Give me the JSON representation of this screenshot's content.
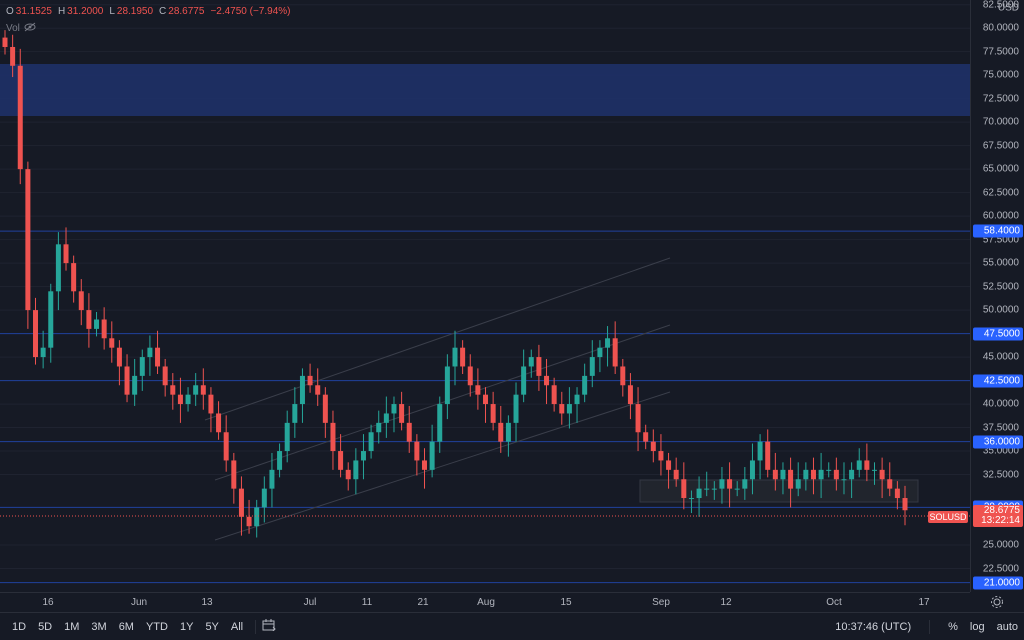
{
  "legend": {
    "open_label": "O",
    "open": "31.1525",
    "high_label": "H",
    "high": "31.2000",
    "low_label": "L",
    "low": "28.1950",
    "close_label": "C",
    "close": "28.6775",
    "change": "−2.4750 (−7.94%)",
    "vol_label": "Vol"
  },
  "price_axis": {
    "currency": "USD",
    "ticks": [
      "82.5000",
      "80.0000",
      "77.5000",
      "75.0000",
      "72.5000",
      "70.0000",
      "67.5000",
      "65.0000",
      "62.5000",
      "60.0000",
      "57.5000",
      "55.0000",
      "52.5000",
      "50.0000",
      "45.0000",
      "40.0000",
      "37.5000",
      "35.0000",
      "32.5000",
      "25.0000",
      "22.5000"
    ],
    "tags": [
      "58.4000",
      "47.5000",
      "42.5000",
      "36.0000",
      "29.0000",
      "21.0000"
    ],
    "last_price": "28.6775",
    "countdown": "13:22:14"
  },
  "symbol": "SOLUSD",
  "time_axis": [
    "16",
    "Jun",
    "13",
    "Jul",
    "11",
    "21",
    "Aug",
    "15",
    "Sep",
    "12",
    "Oct",
    "17"
  ],
  "ranges": [
    "1D",
    "5D",
    "1M",
    "3M",
    "6M",
    "YTD",
    "1Y",
    "5Y",
    "All"
  ],
  "clock": "10:37:46 (UTC)",
  "controls": {
    "percent": "%",
    "log": "log",
    "auto": "auto"
  },
  "colors": {
    "up": "#26a69a",
    "down": "#ef5350",
    "zone": "#1e3168",
    "line": "#2962ff",
    "bg": "#161a25"
  },
  "chart_data": {
    "type": "candlestick",
    "symbol": "SOLUSD",
    "ylim": [
      20,
      83
    ],
    "horizontal_levels": [
      58.4,
      47.5,
      42.5,
      36.0,
      29.0,
      21.0
    ],
    "supply_zone": [
      73,
      78.8
    ],
    "range_box": [
      29.5,
      32.8
    ],
    "close_series": [
      78,
      76,
      65,
      50,
      45,
      46,
      52,
      57,
      55,
      52,
      50,
      48,
      49,
      47,
      46,
      44,
      41,
      43,
      45,
      46,
      44,
      42,
      41,
      40,
      41,
      42,
      41,
      39,
      37,
      34,
      31,
      28,
      27,
      29,
      31,
      33,
      35,
      38,
      40,
      43,
      42,
      41,
      38,
      35,
      33,
      32,
      34,
      35,
      37,
      38,
      39,
      40,
      38,
      36,
      34,
      33,
      36,
      40,
      44,
      46,
      44,
      42,
      41,
      40,
      38,
      36,
      38,
      41,
      44,
      45,
      43,
      42,
      40,
      39,
      40,
      41,
      43,
      45,
      46,
      47,
      44,
      42,
      40,
      37,
      36,
      35,
      34,
      33,
      32,
      30,
      30,
      31,
      31,
      31,
      32,
      31,
      31,
      32,
      34,
      36,
      33,
      32,
      33,
      31,
      32,
      33,
      32,
      33,
      33,
      32,
      32,
      33,
      34,
      33,
      33,
      32,
      31,
      30,
      28.7
    ]
  }
}
